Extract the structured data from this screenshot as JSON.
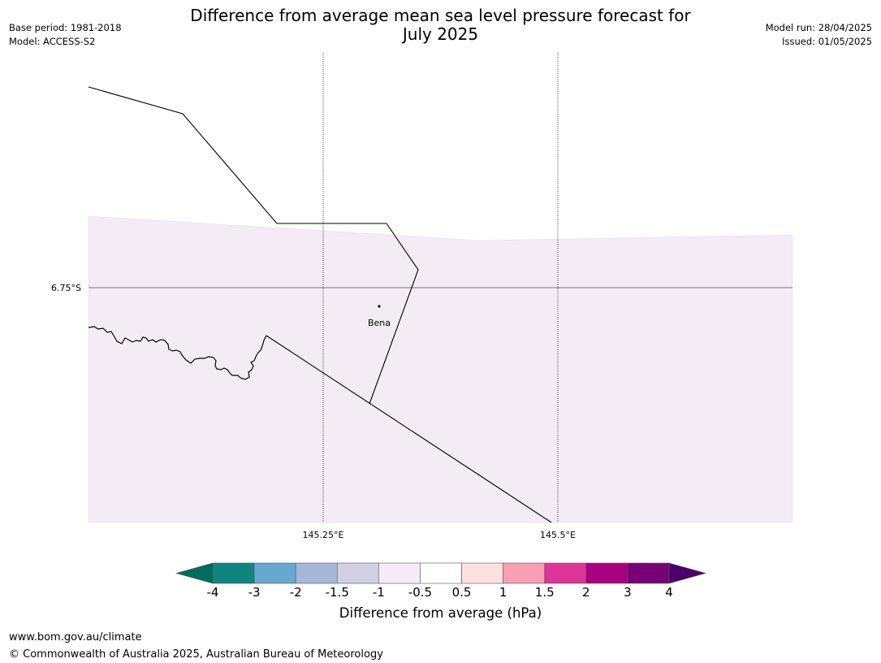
{
  "title": {
    "line1": "Difference from average mean sea level pressure forecast for",
    "line2": "July 2025"
  },
  "meta_left": {
    "base_period": "Base period: 1981-2018",
    "model": "Model: ACCESS-S2"
  },
  "meta_right": {
    "model_run": "Model run: 28/04/2025",
    "issued": "Issued: 01/05/2025"
  },
  "map": {
    "lat_label": "6.75°S",
    "lon_labels": [
      "145.25°E",
      "145.5°E"
    ],
    "place_label": "Bena",
    "fill_color": "#f3ecf5"
  },
  "colorbar": {
    "label": "Difference from average (hPa)",
    "ticks": [
      "-4",
      "-3",
      "-2",
      "-1.5",
      "-1",
      "-0.5",
      "0.5",
      "1",
      "1.5",
      "2",
      "3",
      "4"
    ],
    "colors": [
      "#10857f",
      "#66a8cf",
      "#a5b7d9",
      "#d0cfe3",
      "#f4ecf5",
      "#ffffff",
      "#fde0df",
      "#f89eb5",
      "#dc3597",
      "#a8007f",
      "#7a0077"
    ],
    "under_color": "#006b5f",
    "over_color": "#4a0068"
  },
  "footer": {
    "url": "www.bom.gov.au/climate",
    "copyright": "© Commonwealth of Australia 2025, Australian Bureau of Meteorology"
  }
}
